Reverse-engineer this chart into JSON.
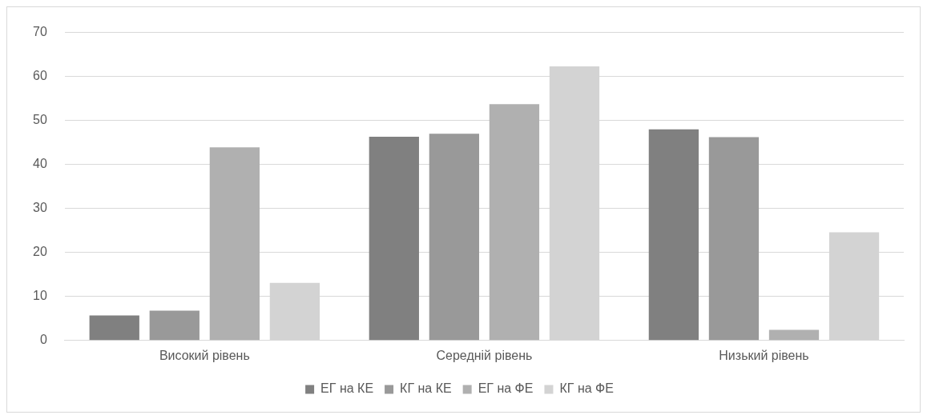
{
  "chart_data": {
    "type": "bar",
    "categories": [
      "Високий рівень",
      "Середній рівень",
      "Низький рівень"
    ],
    "series": [
      {
        "name": "ЕГ на КЕ",
        "color": "#808080",
        "values": [
          5.7,
          46.3,
          48.0
        ]
      },
      {
        "name": "КГ на КЕ",
        "color": "#999999",
        "values": [
          6.8,
          47.0,
          46.2
        ]
      },
      {
        "name": "ЕГ на ФЕ",
        "color": "#b0b0b0",
        "values": [
          43.9,
          53.7,
          2.4
        ]
      },
      {
        "name": "КГ на ФЕ",
        "color": "#d3d3d3",
        "values": [
          13.1,
          62.3,
          24.6
        ]
      }
    ],
    "ylim": [
      0,
      70
    ],
    "yticks": [
      0,
      10,
      20,
      30,
      40,
      50,
      60,
      70
    ],
    "grid": "y",
    "legend": "bottom"
  }
}
